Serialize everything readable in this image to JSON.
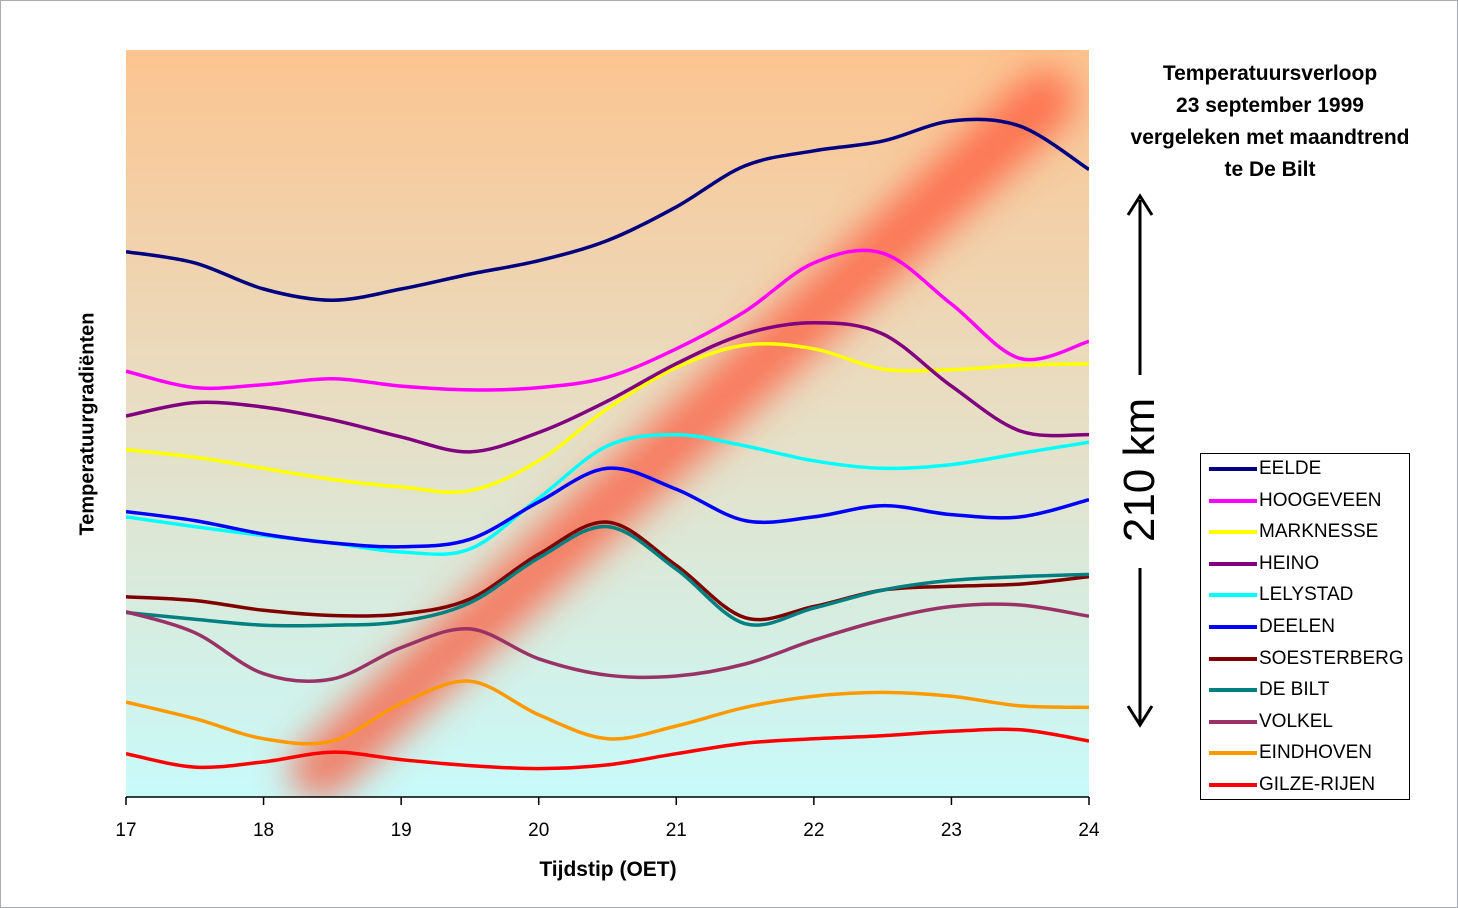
{
  "chart_data": {
    "type": "line",
    "title_lines": [
      "Temperatuursverloop",
      "23 september 1999",
      "vergeleken met maandtrend",
      "te De Bilt"
    ],
    "xlabel": "Tijdstip (OET)",
    "ylabel": "Temperatuurgradiënten",
    "xlim": [
      17,
      24
    ],
    "x_ticks": [
      "17",
      "18",
      "19",
      "20",
      "21",
      "22",
      "23",
      "24"
    ],
    "y_ticks": [],
    "ylim": [
      0,
      1000
    ],
    "grid": false,
    "legend_position": "bottom-right",
    "annotation": "210 km",
    "series": [
      {
        "name": "EELDE",
        "color": "#000080",
        "x": [
          17,
          17.5,
          18,
          18.5,
          19,
          19.5,
          20,
          20.5,
          21,
          21.5,
          22,
          22.5,
          23,
          23.5,
          24
        ],
        "y": [
          730,
          715,
          680,
          665,
          680,
          700,
          718,
          745,
          790,
          845,
          865,
          878,
          905,
          898,
          840
        ]
      },
      {
        "name": "HOOGEVEEN",
        "color": "#ff00ff",
        "x": [
          17,
          17.5,
          18,
          18.5,
          19,
          19.5,
          20,
          20.5,
          21,
          21.5,
          22,
          22.5,
          23,
          23.5,
          24
        ],
        "y": [
          570,
          548,
          552,
          560,
          550,
          545,
          548,
          562,
          600,
          650,
          715,
          728,
          660,
          587,
          610
        ]
      },
      {
        "name": "MARKNESSE",
        "color": "#ffff00",
        "x": [
          17,
          17.5,
          18,
          18.5,
          19,
          19.5,
          20,
          20.5,
          21,
          21.5,
          22,
          22.5,
          23,
          23.5,
          24
        ],
        "y": [
          465,
          455,
          440,
          425,
          415,
          410,
          450,
          520,
          575,
          605,
          600,
          573,
          572,
          578,
          580
        ]
      },
      {
        "name": "HEINO",
        "color": "#800080",
        "x": [
          17,
          17.5,
          18,
          18.5,
          19,
          19.5,
          20,
          20.5,
          21,
          21.5,
          22,
          22.5,
          23,
          23.5,
          24
        ],
        "y": [
          510,
          528,
          522,
          505,
          482,
          462,
          488,
          530,
          580,
          620,
          635,
          620,
          550,
          490,
          485
        ]
      },
      {
        "name": "LELYSTAD",
        "color": "#00ffff",
        "x": [
          17,
          17.5,
          18,
          18.5,
          19,
          19.5,
          20,
          20.5,
          21,
          21.5,
          22,
          22.5,
          23,
          23.5,
          24
        ],
        "y": [
          375,
          362,
          350,
          340,
          328,
          332,
          400,
          470,
          485,
          470,
          450,
          440,
          445,
          460,
          475
        ]
      },
      {
        "name": "DEELEN",
        "color": "#0000ff",
        "x": [
          17,
          17.5,
          18,
          18.5,
          19,
          19.5,
          20,
          20.5,
          21,
          21.5,
          22,
          22.5,
          23,
          23.5,
          24
        ],
        "y": [
          382,
          370,
          352,
          340,
          335,
          345,
          395,
          440,
          412,
          370,
          375,
          390,
          378,
          375,
          398
        ]
      },
      {
        "name": "SOESTERBERG",
        "color": "#800000",
        "x": [
          17,
          17.5,
          18,
          18.5,
          19,
          19.5,
          20,
          20.5,
          21,
          21.5,
          22,
          22.5,
          23,
          23.5,
          24
        ],
        "y": [
          268,
          263,
          250,
          243,
          245,
          265,
          325,
          368,
          310,
          240,
          255,
          277,
          282,
          285,
          295
        ]
      },
      {
        "name": "DE BILT",
        "color": "#008080",
        "x": [
          17,
          17.5,
          18,
          18.5,
          19,
          19.5,
          20,
          20.5,
          21,
          21.5,
          22,
          22.5,
          23,
          23.5,
          24
        ],
        "y": [
          247,
          238,
          230,
          230,
          235,
          260,
          320,
          362,
          305,
          232,
          253,
          277,
          290,
          295,
          298
        ]
      },
      {
        "name": "VOLKEL",
        "color": "#993366",
        "x": [
          17,
          17.5,
          18,
          18.5,
          19,
          19.5,
          20,
          20.5,
          21,
          21.5,
          22,
          22.5,
          23,
          23.5,
          24
        ],
        "y": [
          248,
          220,
          165,
          158,
          200,
          225,
          185,
          163,
          162,
          178,
          210,
          237,
          255,
          257,
          242
        ]
      },
      {
        "name": "EINDHOVEN",
        "color": "#ff9900",
        "x": [
          17,
          17.5,
          18,
          18.5,
          19,
          19.5,
          20,
          20.5,
          21,
          21.5,
          22,
          22.5,
          23,
          23.5,
          24
        ],
        "y": [
          127,
          105,
          78,
          75,
          125,
          155,
          110,
          78,
          95,
          120,
          135,
          140,
          135,
          122,
          120
        ]
      },
      {
        "name": "GILZE-RIJEN",
        "color": "#ff0000",
        "x": [
          17,
          17.5,
          18,
          18.5,
          19,
          19.5,
          20,
          20.5,
          21,
          21.5,
          22,
          22.5,
          23,
          23.5,
          24
        ],
        "y": [
          58,
          40,
          47,
          60,
          50,
          42,
          38,
          43,
          58,
          72,
          78,
          82,
          88,
          90,
          75
        ]
      }
    ]
  }
}
